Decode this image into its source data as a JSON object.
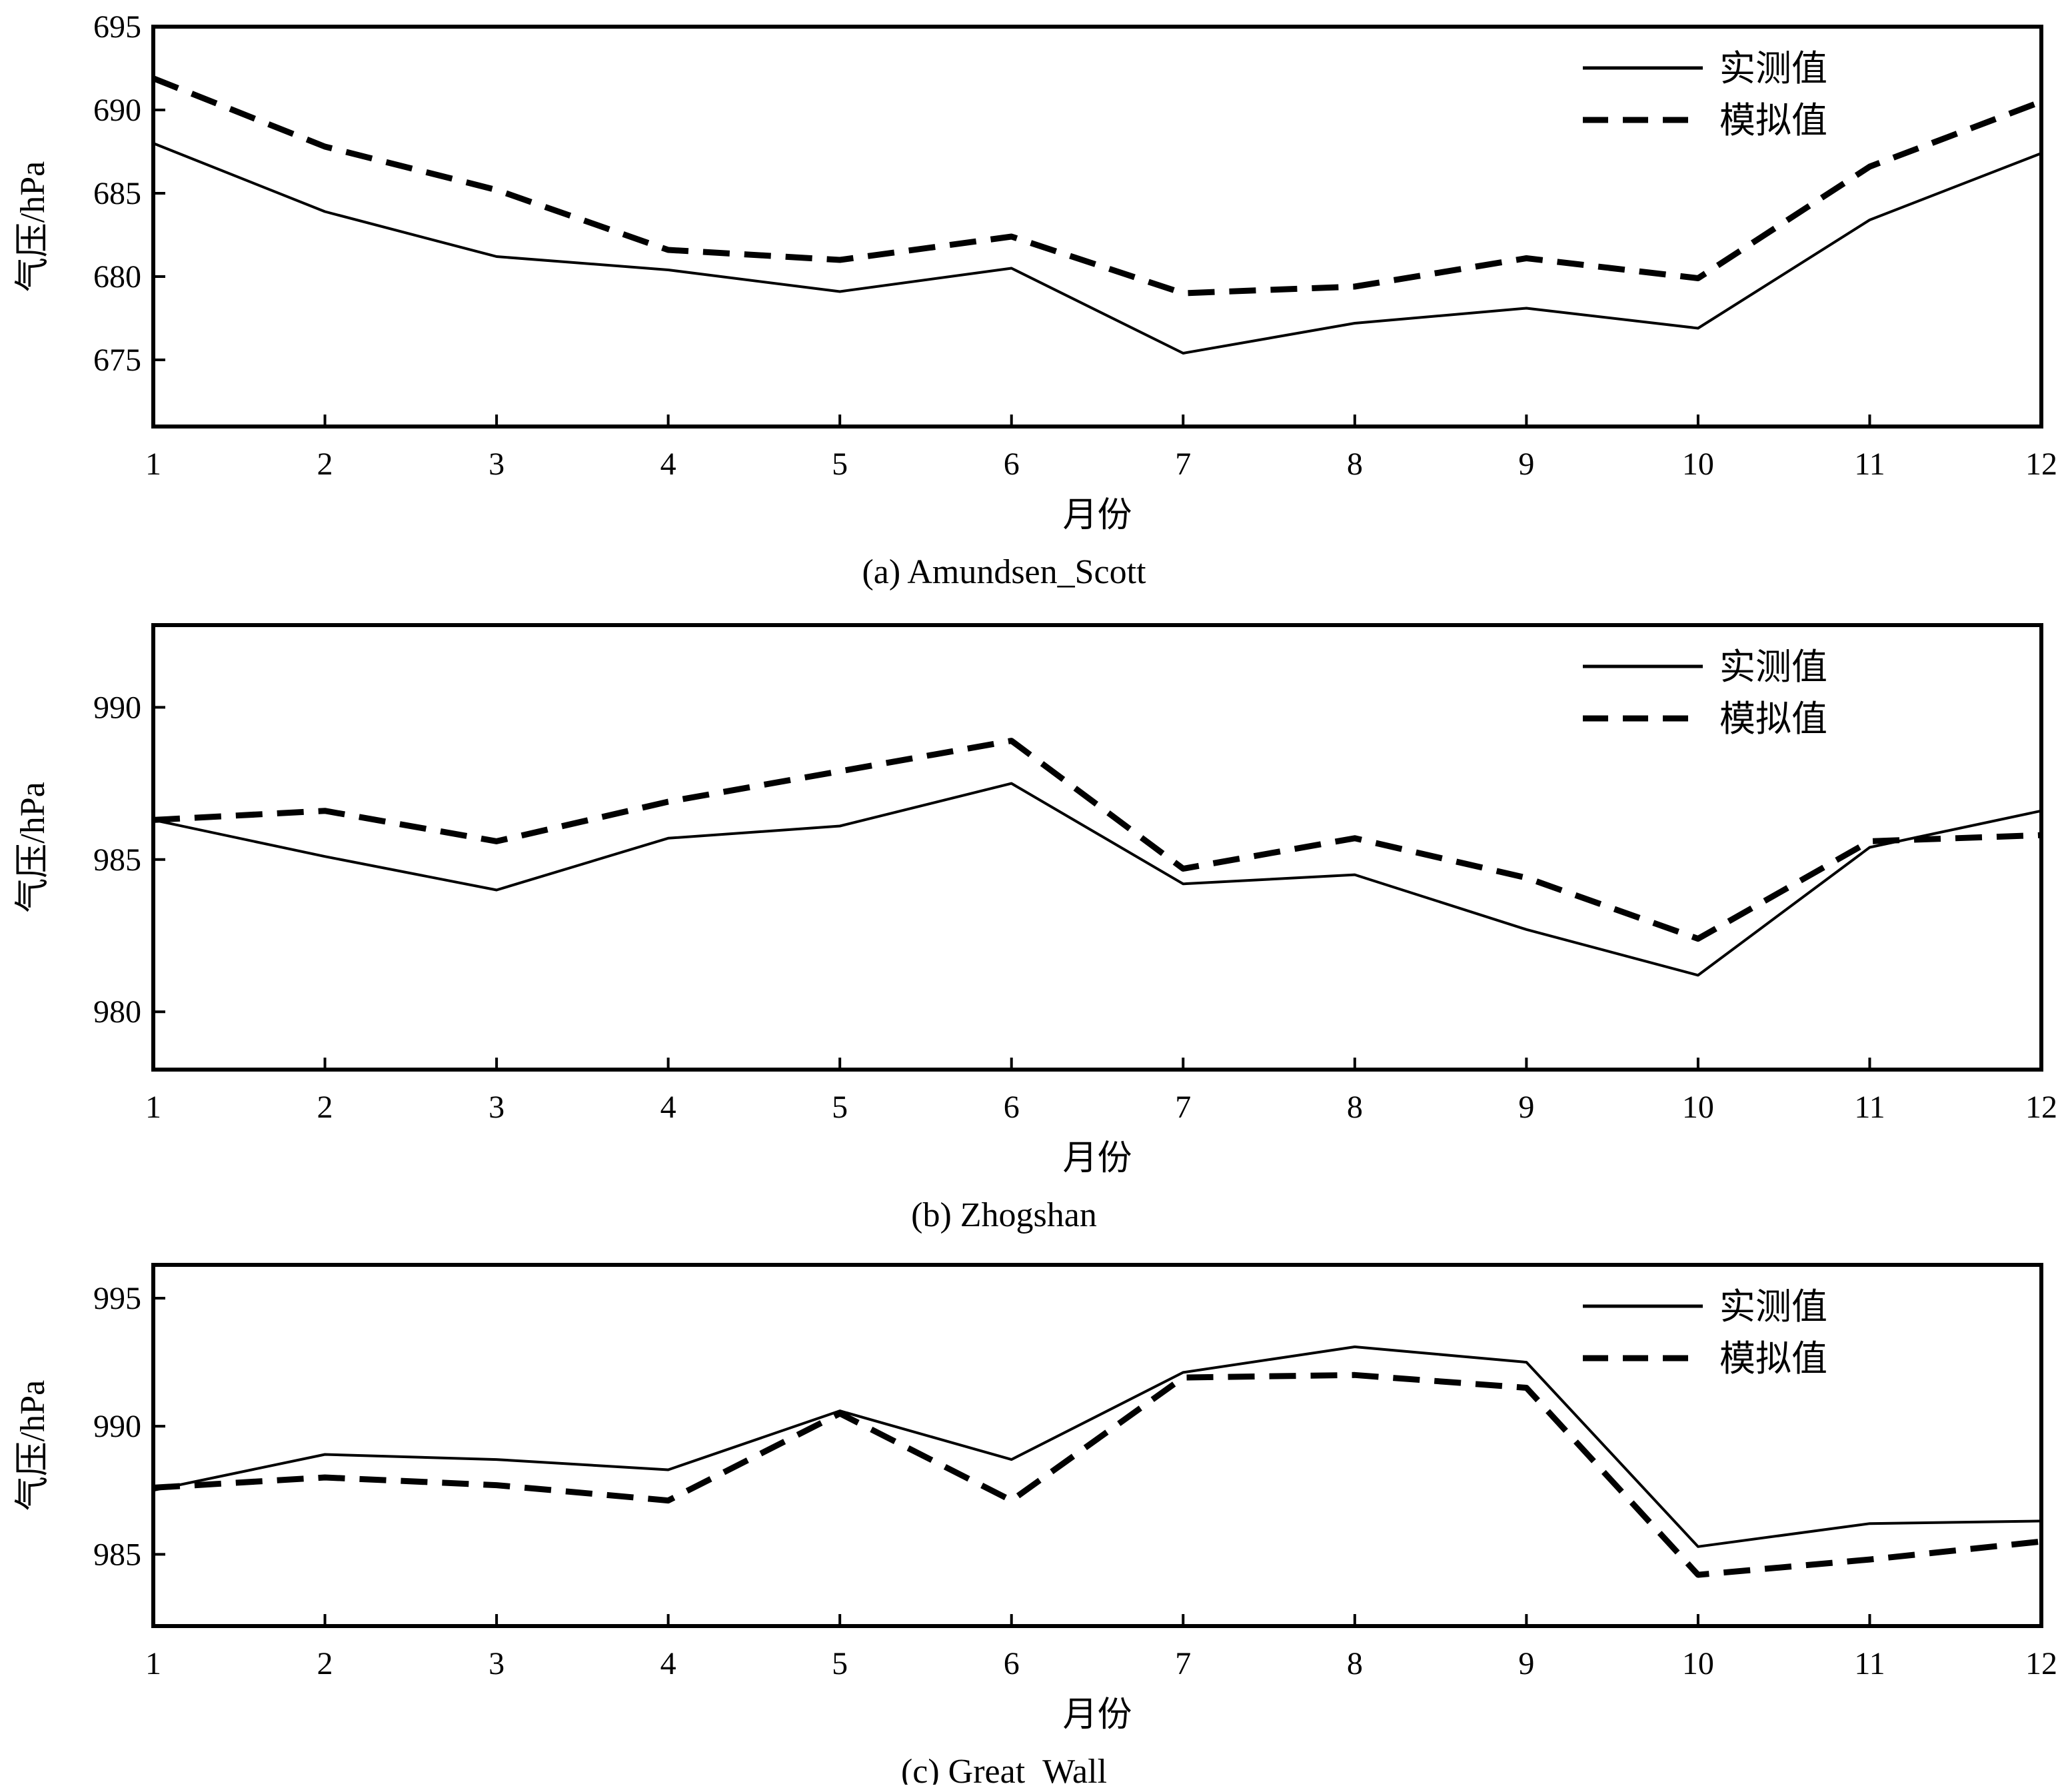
{
  "chart_data": [
    {
      "type": "line",
      "caption": "(a) Amundsen_Scott",
      "xlabel": "月份",
      "ylabel": "气压/hPa",
      "x": [
        1,
        2,
        3,
        4,
        5,
        6,
        7,
        8,
        9,
        10,
        11,
        12
      ],
      "xticks": [
        "1",
        "2",
        "3",
        "4",
        "5",
        "6",
        "7",
        "8",
        "9",
        "10",
        "11",
        "12"
      ],
      "ylim": [
        671,
        695
      ],
      "yticks": [
        "675",
        "680",
        "685",
        "690",
        "695"
      ],
      "legend_position": "top-right",
      "series": [
        {
          "name": "实测值",
          "style": "solid",
          "values": [
            688.0,
            683.9,
            681.2,
            680.4,
            679.1,
            680.5,
            675.4,
            677.2,
            678.1,
            676.9,
            683.4,
            687.4
          ]
        },
        {
          "name": "模拟值",
          "style": "dashed",
          "values": [
            691.9,
            687.8,
            685.2,
            681.6,
            681.0,
            682.4,
            679.0,
            679.4,
            681.1,
            679.9,
            686.6,
            690.5
          ]
        }
      ]
    },
    {
      "type": "line",
      "caption": "(b) Zhogshan",
      "xlabel": "月份",
      "ylabel": "气压/hPa",
      "x": [
        1,
        2,
        3,
        4,
        5,
        6,
        7,
        8,
        9,
        10,
        11,
        12
      ],
      "xticks": [
        "1",
        "2",
        "3",
        "4",
        "5",
        "6",
        "7",
        "8",
        "9",
        "10",
        "11",
        "12"
      ],
      "ylim": [
        978.1,
        992.7
      ],
      "yticks": [
        "980",
        "985",
        "990"
      ],
      "legend_position": "top-right",
      "series": [
        {
          "name": "实测值",
          "style": "solid",
          "values": [
            986.3,
            985.1,
            984.0,
            985.7,
            986.1,
            987.5,
            984.2,
            984.5,
            982.7,
            981.2,
            985.4,
            986.6
          ]
        },
        {
          "name": "模拟值",
          "style": "dashed",
          "values": [
            986.3,
            986.6,
            985.6,
            986.9,
            987.9,
            988.9,
            984.7,
            985.7,
            984.4,
            982.4,
            985.6,
            985.8
          ]
        }
      ]
    },
    {
      "type": "line",
      "caption": "(c) Great_Wall",
      "xlabel": "月份",
      "ylabel": "气压/hPa",
      "x": [
        1,
        2,
        3,
        4,
        5,
        6,
        7,
        8,
        9,
        10,
        11,
        12
      ],
      "xticks": [
        "1",
        "2",
        "3",
        "4",
        "5",
        "6",
        "7",
        "8",
        "9",
        "10",
        "11",
        "12"
      ],
      "ylim": [
        982.2,
        996.3
      ],
      "yticks": [
        "985",
        "990",
        "995"
      ],
      "legend_position": "top-right",
      "series": [
        {
          "name": "实测值",
          "style": "solid",
          "values": [
            987.5,
            988.9,
            988.7,
            988.3,
            990.6,
            988.7,
            992.1,
            993.1,
            992.5,
            985.3,
            986.2,
            986.3
          ]
        },
        {
          "name": "模拟值",
          "style": "dashed",
          "values": [
            987.6,
            988.0,
            987.7,
            987.1,
            990.5,
            987.1,
            991.9,
            992.0,
            991.5,
            984.2,
            984.8,
            985.5
          ]
        }
      ]
    }
  ]
}
